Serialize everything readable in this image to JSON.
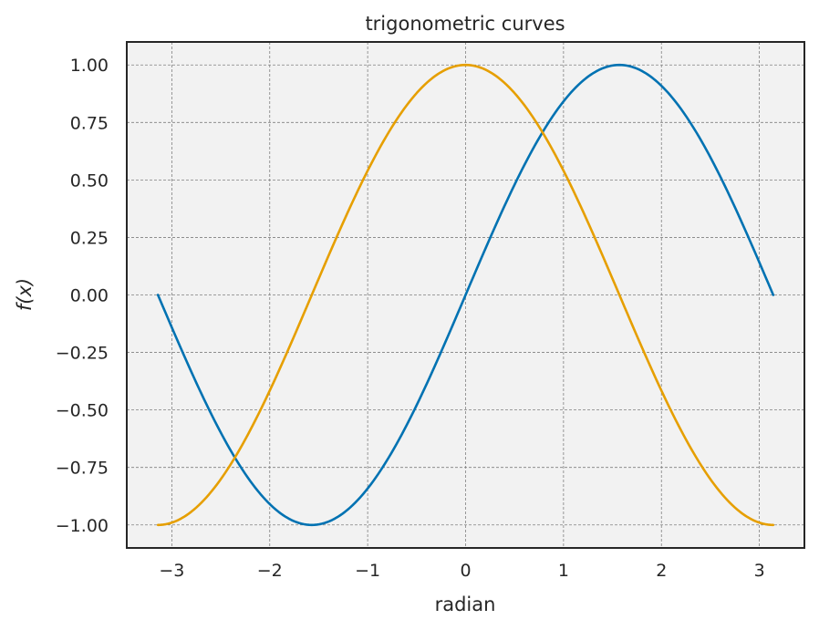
{
  "chart_data": {
    "type": "line",
    "title": "trigonometric curves",
    "xlabel": "radian",
    "ylabel": "f(x)",
    "xlim": [
      -3.46,
      3.46
    ],
    "ylim": [
      -1.1,
      1.1
    ],
    "x_ticks": [
      -3,
      -2,
      -1,
      0,
      1,
      2,
      3
    ],
    "x_tick_labels": [
      "−3",
      "−2",
      "−1",
      "0",
      "1",
      "2",
      "3"
    ],
    "y_ticks": [
      1.0,
      0.75,
      0.5,
      0.25,
      0.0,
      -0.25,
      -0.5,
      -0.75,
      -1.0
    ],
    "y_tick_labels": [
      "1.00",
      "0.75",
      "0.50",
      "0.25",
      "0.00",
      "−0.25",
      "−0.50",
      "−0.75",
      "−1.00"
    ],
    "grid": true,
    "background": "#f2f2f2",
    "series": [
      {
        "function": "sin",
        "color": "#0072b2",
        "x": [
          -3.1416,
          -2.7489,
          -2.3562,
          -1.9635,
          -1.5708,
          -1.1781,
          -0.7854,
          -0.3927,
          0.0,
          0.3927,
          0.7854,
          1.1781,
          1.5708,
          1.9635,
          2.3562,
          2.7489,
          3.1416
        ],
        "y": [
          0.0,
          -0.3827,
          -0.7071,
          -0.9239,
          -1.0,
          -0.9239,
          -0.7071,
          -0.3827,
          0.0,
          0.3827,
          0.7071,
          0.9239,
          1.0,
          0.9239,
          0.7071,
          0.3827,
          0.0
        ]
      },
      {
        "function": "cos",
        "color": "#e69f00",
        "x": [
          -3.1416,
          -2.7489,
          -2.3562,
          -1.9635,
          -1.5708,
          -1.1781,
          -0.7854,
          -0.3927,
          0.0,
          0.3927,
          0.7854,
          1.1781,
          1.5708,
          1.9635,
          2.3562,
          2.7489,
          3.1416
        ],
        "y": [
          -1.0,
          -0.9239,
          -0.7071,
          -0.3827,
          0.0,
          0.3827,
          0.7071,
          0.9239,
          1.0,
          0.9239,
          0.7071,
          0.3827,
          0.0,
          -0.3827,
          -0.7071,
          -0.9239,
          -1.0
        ]
      }
    ]
  }
}
